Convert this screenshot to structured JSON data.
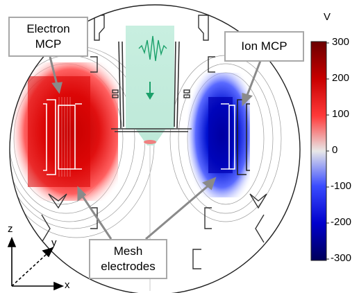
{
  "callouts": {
    "electron_mcp": {
      "line1": "Electron",
      "line2": "MCP"
    },
    "ion_mcp": "Ion MCP",
    "mesh": {
      "line1": "Mesh",
      "line2": "electrodes"
    }
  },
  "colorbar": {
    "unit": "V",
    "ticks": [
      "300",
      "200",
      "100",
      "0",
      "-100",
      "-200",
      "-300"
    ],
    "colors": {
      "max": "#7a0000",
      "mid": "#e8e8e8",
      "min": "#000066"
    }
  },
  "axes": {
    "z": "z",
    "y": "y",
    "x": "x"
  }
}
